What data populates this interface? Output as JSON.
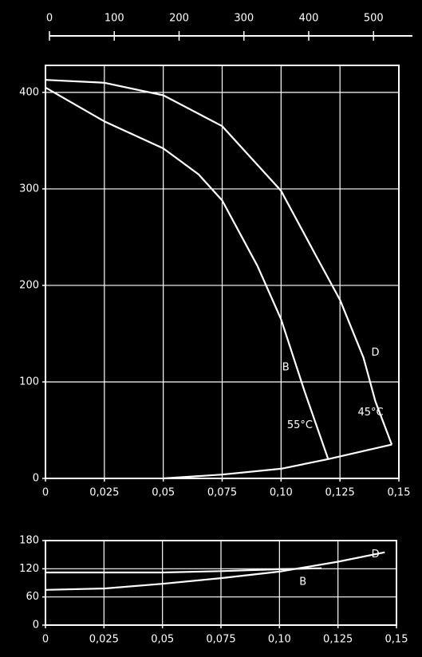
{
  "chart_data": [
    {
      "type": "line",
      "xlim": [
        0,
        0.15
      ],
      "xticks": [
        0,
        {
          "value": 0.025,
          "label": "0,025"
        },
        {
          "value": 0.05,
          "label": "0,05"
        },
        {
          "value": 0.075,
          "label": "0,075"
        },
        {
          "value": 0.1,
          "label": "0,10"
        },
        {
          "value": 0.125,
          "label": "0,125"
        },
        {
          "value": 0.15,
          "label": "0,15"
        }
      ],
      "ylim": [
        0,
        428
      ],
      "yticks": [
        0,
        100,
        200,
        300,
        400
      ],
      "x2lim": [
        0,
        560
      ],
      "x2ticks": [
        0,
        100,
        200,
        300,
        400,
        500
      ],
      "grid": true,
      "series": [
        {
          "name": "D",
          "temperature": "45°C",
          "color": "#ffffff",
          "x": [
            0,
            0.025,
            0.05,
            0.075,
            0.1,
            0.115,
            0.125,
            0.135,
            0.14,
            0.147
          ],
          "values": [
            413,
            410,
            397,
            365,
            298,
            230,
            185,
            125,
            80,
            35
          ]
        },
        {
          "name": "B",
          "temperature": "55°C",
          "color": "#ffffff",
          "x": [
            0,
            0.025,
            0.05,
            0.065,
            0.075,
            0.09,
            0.1,
            0.11,
            0.12
          ],
          "values": [
            405,
            370,
            342,
            315,
            288,
            220,
            165,
            90,
            20
          ]
        },
        {
          "color": "#ffffff",
          "x": [
            0.05,
            0.075,
            0.1,
            0.12,
            0.147
          ],
          "values": [
            0,
            4,
            10,
            20,
            35
          ]
        }
      ]
    },
    {
      "type": "line",
      "xlim": [
        0,
        0.15
      ],
      "xticks": [
        0,
        {
          "value": 0.025,
          "label": "0,025"
        },
        {
          "value": 0.05,
          "label": "0,05"
        },
        {
          "value": 0.075,
          "label": "0,075"
        },
        {
          "value": 0.1,
          "label": "0,10"
        },
        {
          "value": 0.125,
          "label": "0,125"
        },
        {
          "value": 0.15,
          "label": "0,15"
        }
      ],
      "ylim": [
        0,
        180
      ],
      "yticks": [
        0,
        60,
        120,
        180
      ],
      "grid": true,
      "series": [
        {
          "name": "D",
          "color": "#ffffff",
          "x": [
            0,
            0.025,
            0.05,
            0.075,
            0.1,
            0.125,
            0.145
          ],
          "values": [
            75,
            78,
            88,
            100,
            114,
            135,
            155
          ]
        },
        {
          "name": "B",
          "color": "#ffffff",
          "x": [
            0,
            0.05,
            0.075,
            0.1,
            0.118
          ],
          "values": [
            112,
            112,
            115,
            119,
            121
          ]
        }
      ]
    }
  ]
}
